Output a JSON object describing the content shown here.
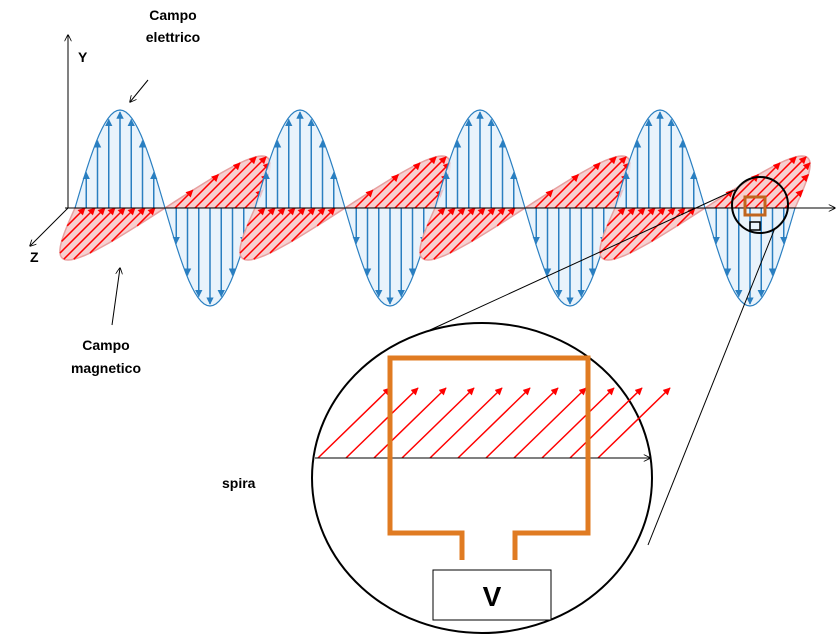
{
  "axes": {
    "y": "Y",
    "z": "Z"
  },
  "electric_field_label": {
    "lines": [
      "Campo",
      "elettrico"
    ]
  },
  "magnetic_field_label": {
    "lines": [
      "Campo",
      "magnetico"
    ]
  },
  "loop_label": "spira",
  "meter_label": "V"
}
